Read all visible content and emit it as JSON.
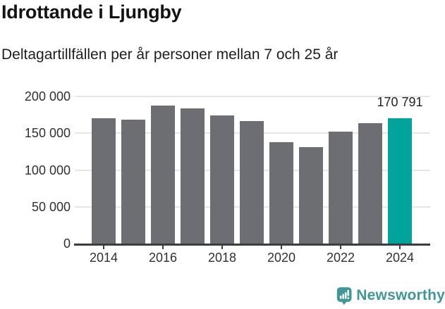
{
  "header": {
    "title": "Idrottande i Ljungby",
    "subtitle": "Deltagartillfällen per år personer mellan 7 och 25 år"
  },
  "chart_data": {
    "type": "bar",
    "categories": [
      2014,
      2015,
      2016,
      2017,
      2018,
      2019,
      2020,
      2021,
      2022,
      2023,
      2024
    ],
    "values": [
      170500,
      168500,
      188000,
      184000,
      174500,
      166500,
      138000,
      131500,
      152000,
      164000,
      170791
    ],
    "highlight_index": 10,
    "annotation": {
      "text": "170 791",
      "index": 10
    },
    "title": "Idrottande i Ljungby",
    "subtitle": "Deltagartillfällen per år personer mellan 7 och 25 år",
    "xlabel": "",
    "ylabel": "",
    "ylim": [
      0,
      200000
    ],
    "yticks": [
      0,
      50000,
      100000,
      150000,
      200000
    ],
    "ytick_labels": [
      "0",
      "50 000",
      "100 000",
      "150 000",
      "200 000"
    ],
    "xtick_labels": [
      "2014",
      "2016",
      "2018",
      "2020",
      "2022",
      "2024"
    ],
    "grid": true,
    "legend": false,
    "bar_color": "#6d6d74",
    "highlight_color": "#00a49a",
    "axis_color": "#3b3d40",
    "gridline_color": "#e6e6e6"
  },
  "footer": {
    "brand": "Newsworthy",
    "logo_icon": "bar-chart-speech-bubble",
    "logo_color": "#429697"
  }
}
